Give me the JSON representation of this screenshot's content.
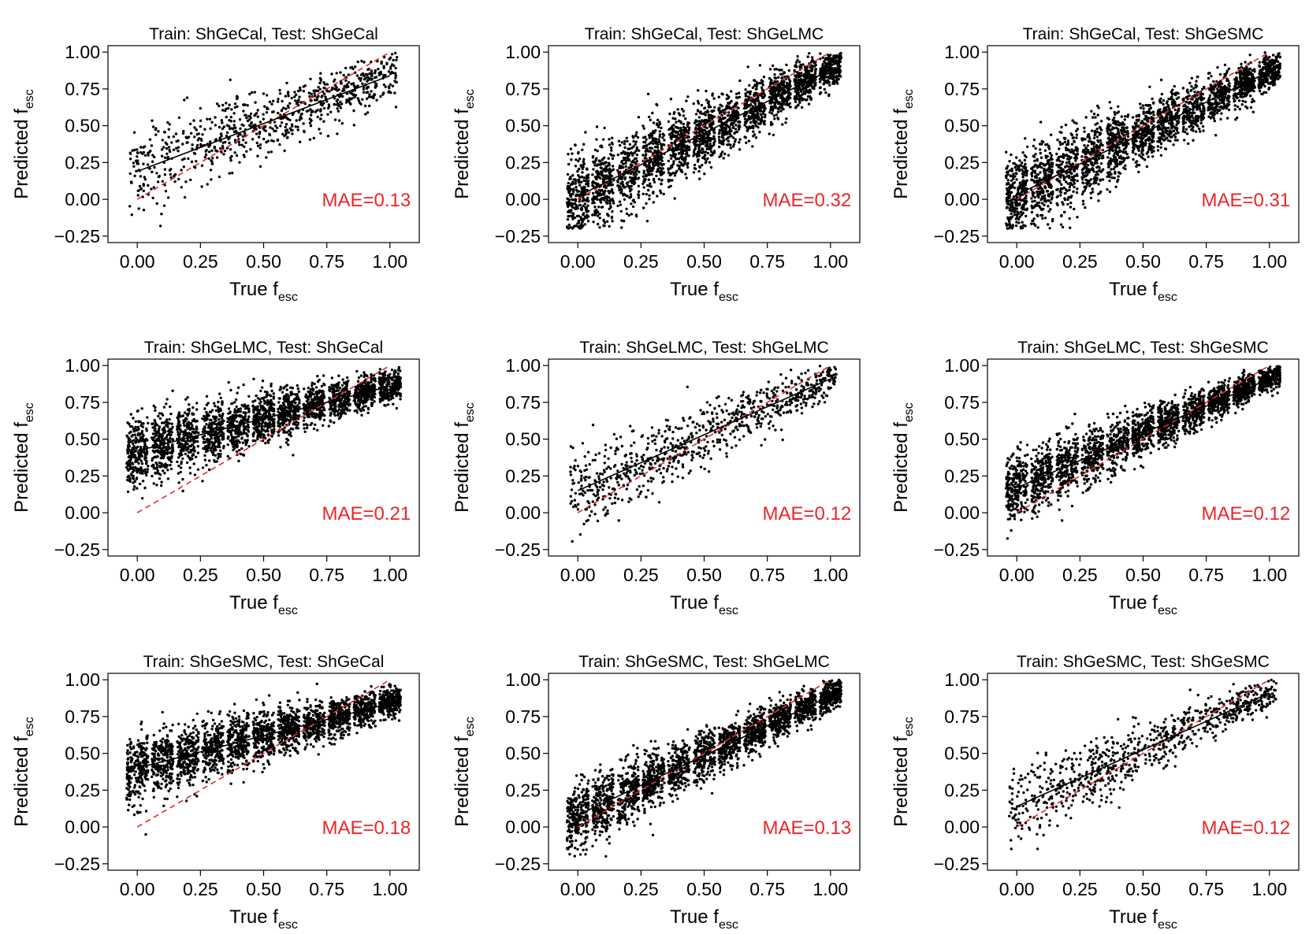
{
  "figure": {
    "x_label_main": "True f",
    "x_label_sub": "esc",
    "y_label_main": "Predicted f",
    "y_label_sub": "esc",
    "colors": {
      "points": "#000000",
      "fit_line": "#000000",
      "identity_line": "#e8262a",
      "mae_text": "#e8262a",
      "axis": "#000000"
    }
  },
  "chart_data": [
    {
      "type": "scatter",
      "title": "Train: ShGeCal, Test: ShGeCal",
      "annotation": "MAE=0.13",
      "xlim": [
        -0.05,
        1.05
      ],
      "ylim": [
        -0.25,
        1.0
      ],
      "xticks": [
        "0.00",
        "0.25",
        "0.50",
        "0.75",
        "1.00"
      ],
      "yticks": [
        "−0.25",
        "0.00",
        "0.25",
        "0.50",
        "0.75",
        "1.00"
      ],
      "x_distribution": "continuous",
      "n_points": 800,
      "fit_line": {
        "x": [
          0,
          1
        ],
        "y": [
          0.19,
          0.84
        ]
      },
      "identity_line": {
        "x": [
          0,
          1
        ],
        "y": [
          0,
          1
        ]
      },
      "scatter_sd": [
        0.16,
        0.07
      ]
    },
    {
      "type": "scatter",
      "title": "Train: ShGeCal, Test: ShGeLMC",
      "annotation": "MAE=0.32",
      "xlim": [
        -0.05,
        1.05
      ],
      "ylim": [
        -0.25,
        1.0
      ],
      "xticks": [
        "0.00",
        "0.25",
        "0.50",
        "0.75",
        "1.00"
      ],
      "yticks": [
        "−0.25",
        "0.00",
        "0.25",
        "0.50",
        "0.75",
        "1.00"
      ],
      "x_distribution": "binned",
      "n_points": 2600,
      "fit_line": {
        "x": [
          0,
          1
        ],
        "y": [
          0.02,
          0.88
        ]
      },
      "identity_line": {
        "x": [
          0,
          1
        ],
        "y": [
          0,
          1
        ]
      },
      "scatter_sd": [
        0.15,
        0.06
      ]
    },
    {
      "type": "scatter",
      "title": "Train: ShGeCal, Test: ShGeSMC",
      "annotation": "MAE=0.31",
      "xlim": [
        -0.05,
        1.05
      ],
      "ylim": [
        -0.25,
        1.0
      ],
      "xticks": [
        "0.00",
        "0.25",
        "0.50",
        "0.75",
        "1.00"
      ],
      "yticks": [
        "−0.25",
        "0.00",
        "0.25",
        "0.50",
        "0.75",
        "1.00"
      ],
      "x_distribution": "binned",
      "n_points": 2600,
      "fit_line": {
        "x": [
          0,
          1
        ],
        "y": [
          0.03,
          0.87
        ]
      },
      "identity_line": {
        "x": [
          0,
          1
        ],
        "y": [
          0,
          1
        ]
      },
      "scatter_sd": [
        0.15,
        0.06
      ]
    },
    {
      "type": "scatter",
      "title": "Train: ShGeLMC, Test: ShGeCal",
      "annotation": "MAE=0.21",
      "xlim": [
        -0.05,
        1.05
      ],
      "ylim": [
        -0.25,
        1.0
      ],
      "xticks": [
        "0.00",
        "0.25",
        "0.50",
        "0.75",
        "1.00"
      ],
      "yticks": [
        "−0.25",
        "0.00",
        "0.25",
        "0.50",
        "0.75",
        "1.00"
      ],
      "x_distribution": "binned",
      "n_points": 2600,
      "fit_line": {
        "x": [
          0,
          1
        ],
        "y": [
          0.42,
          0.86
        ]
      },
      "identity_line": {
        "x": [
          0,
          1
        ],
        "y": [
          0,
          1
        ]
      },
      "scatter_sd": [
        0.12,
        0.05
      ]
    },
    {
      "type": "scatter",
      "title": "Train: ShGeLMC, Test: ShGeLMC",
      "annotation": "MAE=0.12",
      "xlim": [
        -0.05,
        1.05
      ],
      "ylim": [
        -0.25,
        1.0
      ],
      "xticks": [
        "0.00",
        "0.25",
        "0.50",
        "0.75",
        "1.00"
      ],
      "yticks": [
        "−0.25",
        "0.00",
        "0.25",
        "0.50",
        "0.75",
        "1.00"
      ],
      "x_distribution": "continuous",
      "n_points": 800,
      "fit_line": {
        "x": [
          0,
          1
        ],
        "y": [
          0.15,
          0.91
        ]
      },
      "identity_line": {
        "x": [
          0,
          1
        ],
        "y": [
          0,
          1
        ]
      },
      "scatter_sd": [
        0.15,
        0.06
      ]
    },
    {
      "type": "scatter",
      "title": "Train: ShGeLMC, Test: ShGeSMC",
      "annotation": "MAE=0.12",
      "xlim": [
        -0.05,
        1.05
      ],
      "ylim": [
        -0.25,
        1.0
      ],
      "xticks": [
        "0.00",
        "0.25",
        "0.50",
        "0.75",
        "1.00"
      ],
      "yticks": [
        "−0.25",
        "0.00",
        "0.25",
        "0.50",
        "0.75",
        "1.00"
      ],
      "x_distribution": "binned",
      "n_points": 2600,
      "fit_line": {
        "x": [
          0,
          1
        ],
        "y": [
          0.17,
          0.91
        ]
      },
      "identity_line": {
        "x": [
          0,
          1
        ],
        "y": [
          0,
          1
        ]
      },
      "scatter_sd": [
        0.12,
        0.04
      ]
    },
    {
      "type": "scatter",
      "title": "Train: ShGeSMC, Test: ShGeCal",
      "annotation": "MAE=0.18",
      "xlim": [
        -0.05,
        1.05
      ],
      "ylim": [
        -0.25,
        1.0
      ],
      "xticks": [
        "0.00",
        "0.25",
        "0.50",
        "0.75",
        "1.00"
      ],
      "yticks": [
        "−0.25",
        "0.00",
        "0.25",
        "0.50",
        "0.75",
        "1.00"
      ],
      "x_distribution": "binned",
      "n_points": 2600,
      "fit_line": {
        "x": [
          0,
          1
        ],
        "y": [
          0.4,
          0.84
        ]
      },
      "identity_line": {
        "x": [
          0,
          1
        ],
        "y": [
          0,
          1
        ]
      },
      "scatter_sd": [
        0.12,
        0.05
      ]
    },
    {
      "type": "scatter",
      "title": "Train: ShGeSMC, Test: ShGeLMC",
      "annotation": "MAE=0.13",
      "xlim": [
        -0.05,
        1.05
      ],
      "ylim": [
        -0.25,
        1.0
      ],
      "xticks": [
        "0.00",
        "0.25",
        "0.50",
        "0.75",
        "1.00"
      ],
      "yticks": [
        "−0.25",
        "0.00",
        "0.25",
        "0.50",
        "0.75",
        "1.00"
      ],
      "x_distribution": "binned",
      "n_points": 2600,
      "fit_line": {
        "x": [
          0,
          1
        ],
        "y": [
          0.08,
          0.89
        ]
      },
      "identity_line": {
        "x": [
          0,
          1
        ],
        "y": [
          0,
          1
        ]
      },
      "scatter_sd": [
        0.12,
        0.05
      ]
    },
    {
      "type": "scatter",
      "title": "Train: ShGeSMC, Test: ShGeSMC",
      "annotation": "MAE=0.12",
      "xlim": [
        -0.05,
        1.05
      ],
      "ylim": [
        -0.25,
        1.0
      ],
      "xticks": [
        "0.00",
        "0.25",
        "0.50",
        "0.75",
        "1.00"
      ],
      "yticks": [
        "−0.25",
        "0.00",
        "0.25",
        "0.50",
        "0.75",
        "1.00"
      ],
      "x_distribution": "continuous",
      "n_points": 800,
      "fit_line": {
        "x": [
          0,
          1
        ],
        "y": [
          0.14,
          0.91
        ]
      },
      "identity_line": {
        "x": [
          0,
          1
        ],
        "y": [
          0,
          1
        ]
      },
      "scatter_sd": [
        0.14,
        0.05
      ]
    }
  ]
}
